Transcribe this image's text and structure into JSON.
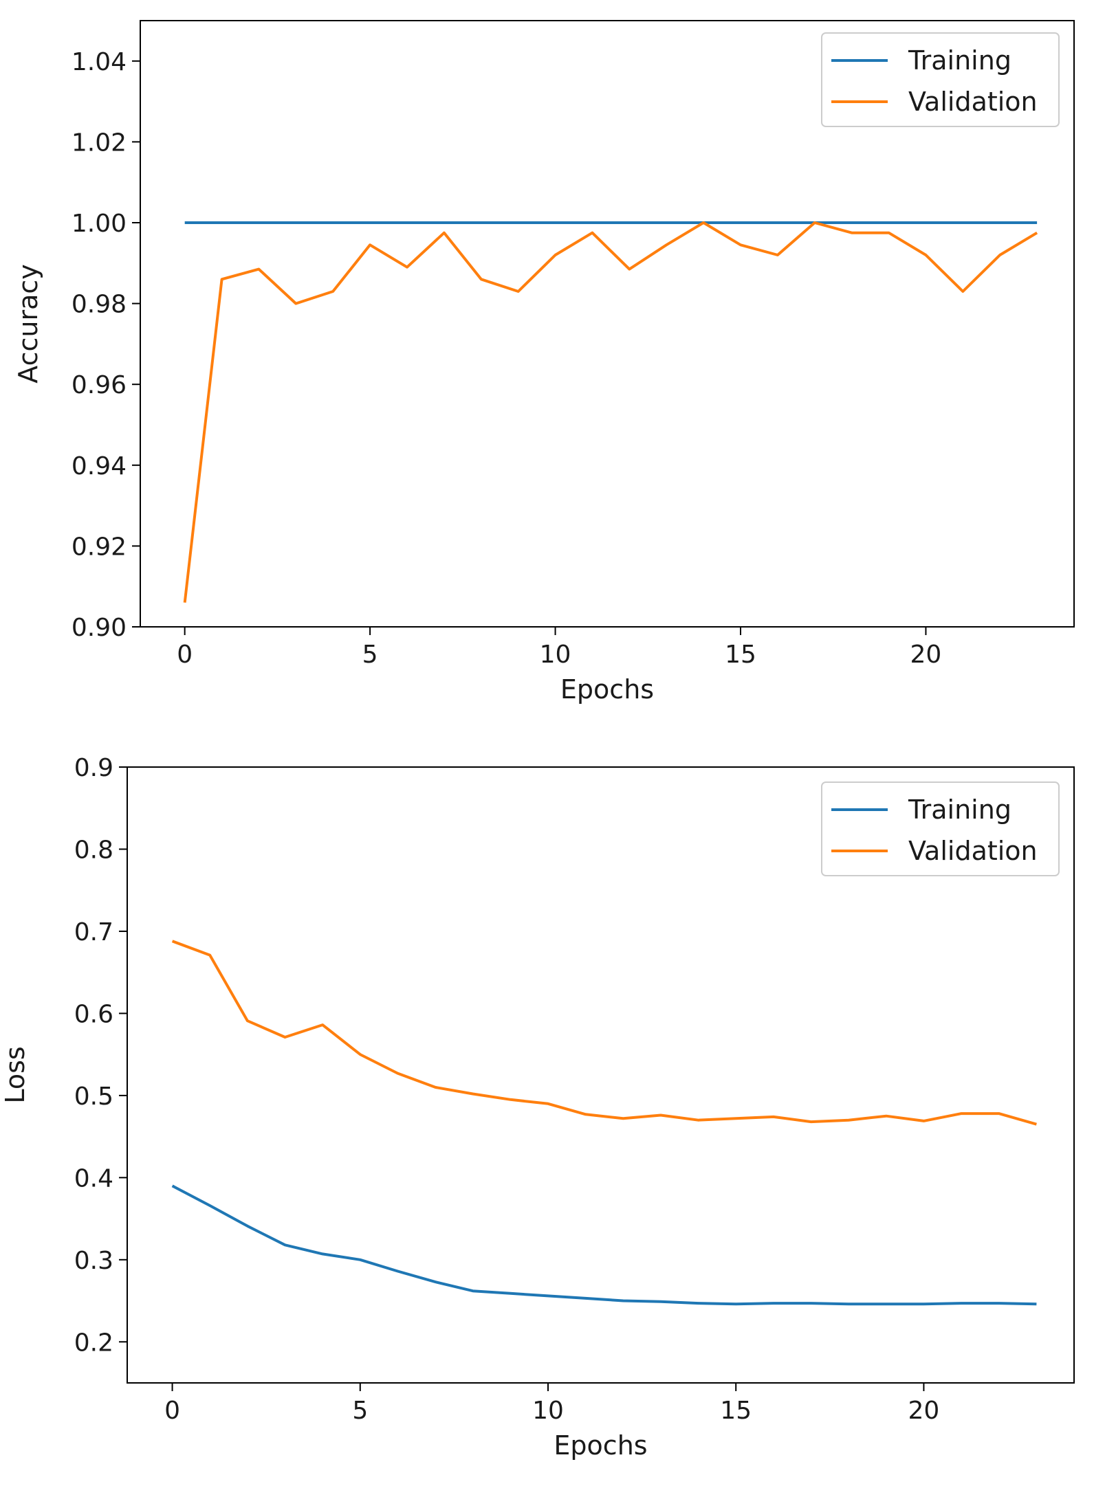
{
  "chart_data": [
    {
      "type": "line",
      "title": "",
      "xlabel": "Epochs",
      "ylabel": "Accuracy",
      "xlim": [
        -1.2,
        24.0
      ],
      "ylim": [
        0.9,
        1.05
      ],
      "xticks": [
        0,
        5,
        10,
        15,
        20
      ],
      "xtick_labels": [
        "0",
        "5",
        "10",
        "15",
        "20"
      ],
      "yticks": [
        0.9,
        0.92,
        0.94,
        0.96,
        0.98,
        1.0,
        1.02,
        1.04
      ],
      "ytick_labels": [
        "0.90",
        "0.92",
        "0.94",
        "0.96",
        "0.98",
        "1.00",
        "1.02",
        "1.04"
      ],
      "grid": false,
      "legend_position": "top-right",
      "x": [
        0,
        1,
        2,
        3,
        4,
        5,
        6,
        7,
        8,
        9,
        10,
        11,
        12,
        13,
        14,
        15,
        16,
        17,
        18,
        19,
        20,
        21,
        22,
        23
      ],
      "series": [
        {
          "name": "Training",
          "color": "#1f77b4",
          "values": [
            1.0,
            1.0,
            1.0,
            1.0,
            1.0,
            1.0,
            1.0,
            1.0,
            1.0,
            1.0,
            1.0,
            1.0,
            1.0,
            1.0,
            1.0,
            1.0,
            1.0,
            1.0,
            1.0,
            1.0,
            1.0,
            1.0,
            1.0,
            1.0
          ]
        },
        {
          "name": "Validation",
          "color": "#ff7f0e",
          "values": [
            0.906,
            0.986,
            0.9885,
            0.98,
            0.983,
            0.9945,
            0.989,
            0.9975,
            0.986,
            0.983,
            0.992,
            0.9975,
            0.9885,
            0.9945,
            1.0,
            0.9945,
            0.992,
            1.0,
            0.9975,
            0.9975,
            0.992,
            0.983,
            0.992,
            0.9975
          ]
        }
      ]
    },
    {
      "type": "line",
      "title": "",
      "xlabel": "Epochs",
      "ylabel": "Loss",
      "xlim": [
        -1.2,
        24.0
      ],
      "ylim": [
        0.15,
        0.9
      ],
      "xticks": [
        0,
        5,
        10,
        15,
        20
      ],
      "xtick_labels": [
        "0",
        "5",
        "10",
        "15",
        "20"
      ],
      "yticks": [
        0.2,
        0.3,
        0.4,
        0.5,
        0.6,
        0.7,
        0.8,
        0.9
      ],
      "ytick_labels": [
        "0.2",
        "0.3",
        "0.4",
        "0.5",
        "0.6",
        "0.7",
        "0.8",
        "0.9"
      ],
      "grid": false,
      "legend_position": "top-right",
      "x": [
        0,
        1,
        2,
        3,
        4,
        5,
        6,
        7,
        8,
        9,
        10,
        11,
        12,
        13,
        14,
        15,
        16,
        17,
        18,
        19,
        20,
        21,
        22,
        23
      ],
      "series": [
        {
          "name": "Training",
          "color": "#1f77b4",
          "values": [
            0.39,
            0.366,
            0.341,
            0.318,
            0.307,
            0.3,
            0.286,
            0.273,
            0.262,
            0.259,
            0.256,
            0.253,
            0.25,
            0.249,
            0.247,
            0.246,
            0.247,
            0.247,
            0.246,
            0.246,
            0.246,
            0.247,
            0.247,
            0.246
          ]
        },
        {
          "name": "Validation",
          "color": "#ff7f0e",
          "values": [
            0.688,
            0.671,
            0.591,
            0.571,
            0.586,
            0.55,
            0.527,
            0.51,
            0.502,
            0.495,
            0.49,
            0.477,
            0.472,
            0.476,
            0.47,
            0.472,
            0.474,
            0.468,
            0.47,
            0.475,
            0.469,
            0.478,
            0.478,
            0.465
          ]
        }
      ]
    }
  ]
}
